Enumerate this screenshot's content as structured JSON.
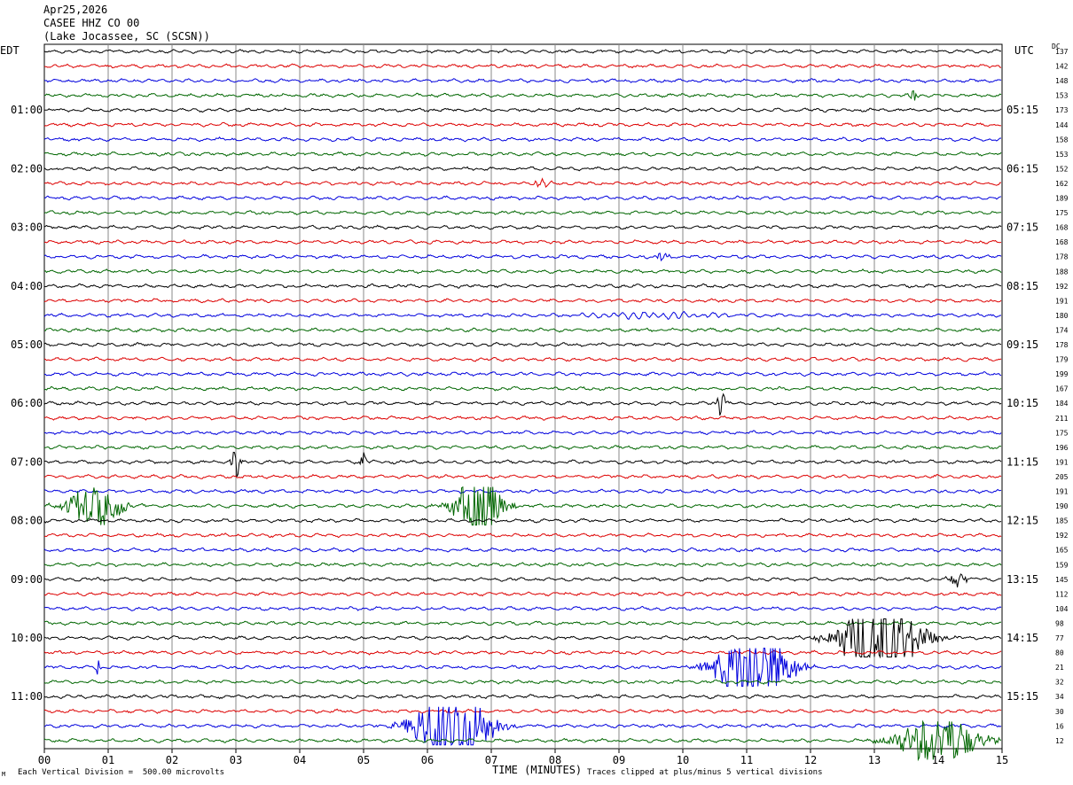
{
  "header": {
    "date": "Apr25,2026",
    "station": "CASEE HHZ CO 00",
    "location": "(Lake Jocassee, SC (SCSN))"
  },
  "left_tz": "EDT",
  "right_tz": "UTC",
  "dc_label": "DC",
  "footer": {
    "scale_note": "Each Vertical Division =  500.00 microvolts",
    "xlabel": "TIME (MINUTES)",
    "clip_note": "Traces clipped at plus/minus 5 vertical divisions"
  },
  "colors": {
    "cycle": [
      "#000000",
      "#dd0000",
      "#0000dd",
      "#006600"
    ],
    "grid": "#888888"
  },
  "chart_data": {
    "type": "seismogram",
    "x_ticks": [
      "00",
      "01",
      "02",
      "03",
      "04",
      "05",
      "06",
      "07",
      "08",
      "09",
      "10",
      "11",
      "12",
      "13",
      "14",
      "15"
    ],
    "xlim": [
      0,
      15
    ],
    "minutes_per_line": 15,
    "lines_per_hour": 4,
    "left_hour_labels": [
      "01:00",
      "02:00",
      "03:00",
      "04:00",
      "05:00",
      "06:00",
      "07:00",
      "08:00",
      "09:00",
      "10:00",
      "11:00"
    ],
    "right_hour_labels": [
      "05:15",
      "06:15",
      "07:15",
      "08:15",
      "09:15",
      "10:15",
      "11:15",
      "12:15",
      "13:15",
      "14:15",
      "15:15"
    ],
    "dc_offsets": [
      "137",
      "142",
      "148",
      "153",
      "173",
      "144",
      "158",
      "153",
      "152",
      "162",
      "189",
      "175",
      "168",
      "168",
      "178",
      "188",
      "192",
      "191",
      "180",
      "174",
      "178",
      "179",
      "199",
      "167",
      "184",
      "211",
      "175",
      "196",
      "191",
      "205",
      "191",
      "190",
      "185",
      "192",
      "165",
      "159",
      "145",
      "112",
      "104",
      "98",
      "77",
      "80",
      "21",
      "32",
      "34",
      "30",
      "16",
      "12"
    ],
    "events": [
      {
        "trace": 3,
        "center_min": 13.6,
        "duration_min": 0.2,
        "amplitude": 0.6
      },
      {
        "trace": 9,
        "center_min": 7.8,
        "duration_min": 0.25,
        "amplitude": 0.7
      },
      {
        "trace": 14,
        "center_min": 9.7,
        "duration_min": 0.2,
        "amplitude": 0.6
      },
      {
        "trace": 18,
        "center_min": 9.5,
        "duration_min": 2.5,
        "amplitude": 1.0,
        "long_period": true
      },
      {
        "trace": 24,
        "center_min": 10.6,
        "duration_min": 0.15,
        "amplitude": 1.5
      },
      {
        "trace": 28,
        "center_min": 3.0,
        "duration_min": 0.15,
        "amplitude": 2.0
      },
      {
        "trace": 28,
        "center_min": 5.0,
        "duration_min": 0.1,
        "amplitude": 1.2
      },
      {
        "trace": 31,
        "center_min": 0.8,
        "duration_min": 0.9,
        "amplitude": 2.5
      },
      {
        "trace": 31,
        "center_min": 6.8,
        "duration_min": 0.8,
        "amplitude": 3.8
      },
      {
        "trace": 36,
        "center_min": 14.3,
        "duration_min": 0.3,
        "amplitude": 1.0
      },
      {
        "trace": 40,
        "center_min": 13.1,
        "duration_min": 1.3,
        "amplitude": 5.0
      },
      {
        "trace": 42,
        "center_min": 11.1,
        "duration_min": 1.2,
        "amplitude": 4.5
      },
      {
        "trace": 42,
        "center_min": 0.85,
        "duration_min": 0.08,
        "amplitude": 1.2
      },
      {
        "trace": 46,
        "center_min": 6.4,
        "duration_min": 1.2,
        "amplitude": 5.0
      },
      {
        "trace": 47,
        "center_min": 14.0,
        "duration_min": 1.3,
        "amplitude": 3.0
      }
    ]
  }
}
